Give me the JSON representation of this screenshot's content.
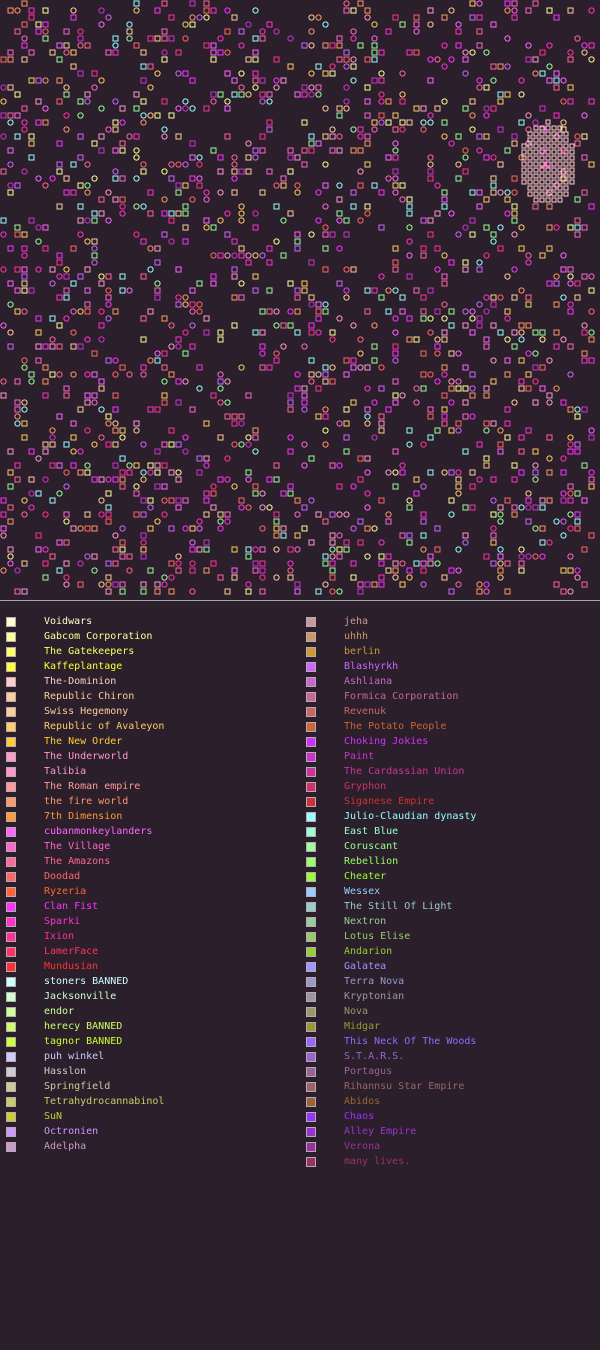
{
  "legend": {
    "left": [
      {
        "name": "Voidwars",
        "color": "#ffffcc"
      },
      {
        "name": "Gabcom Corporation",
        "color": "#ffff99"
      },
      {
        "name": "The Gatekeepers",
        "color": "#ffff66"
      },
      {
        "name": "Kaffeplantage",
        "color": "#ffff33"
      },
      {
        "name": "The-Dominion",
        "color": "#ffcccc"
      },
      {
        "name": "Republic Chiron",
        "color": "#ffcc99"
      },
      {
        "name": "Swiss Hegemony",
        "color": "#ffcc99"
      },
      {
        "name": "Republic of Avaleyon",
        "color": "#ffcc66"
      },
      {
        "name": "The New Order",
        "color": "#ffcc33"
      },
      {
        "name": "The Underworld",
        "color": "#ff99cc"
      },
      {
        "name": "Talibia",
        "color": "#ff99cc"
      },
      {
        "name": "The Roman empire",
        "color": "#ff9999"
      },
      {
        "name": "the fire world",
        "color": "#ff9966"
      },
      {
        "name": "7th Dimension",
        "color": "#ff9933"
      },
      {
        "name": "cubanmonkeylanders",
        "color": "#ff66ff"
      },
      {
        "name": "The Village",
        "color": "#ff66cc"
      },
      {
        "name": "The Amazons",
        "color": "#ff6699"
      },
      {
        "name": "Doodad",
        "color": "#ff6666"
      },
      {
        "name": "Ryzeria",
        "color": "#ff6633"
      },
      {
        "name": "Clan Fist",
        "color": "#ff33ff"
      },
      {
        "name": "Sparki",
        "color": "#ff33cc"
      },
      {
        "name": "Ixion",
        "color": "#ff3399"
      },
      {
        "name": "LamerFace",
        "color": "#ff3366"
      },
      {
        "name": "Mundusian",
        "color": "#ff3333"
      },
      {
        "name": "stoners BANNED",
        "color": "#ccffff"
      },
      {
        "name": "Jacksonville",
        "color": "#ccffcc"
      },
      {
        "name": "endor",
        "color": "#ccff99"
      },
      {
        "name": "herecy BANNED",
        "color": "#ccff66"
      },
      {
        "name": "tagnor BANNED",
        "color": "#ccff33"
      },
      {
        "name": "puh winkel",
        "color": "#ccccff"
      },
      {
        "name": "Hasslon",
        "color": "#cccccc"
      },
      {
        "name": "Springfield",
        "color": "#cccc99"
      },
      {
        "name": "Tetrahydrocannabinol",
        "color": "#cccc66"
      },
      {
        "name": "SuN",
        "color": "#cccc33"
      },
      {
        "name": "Octronien",
        "color": "#cc99ff"
      },
      {
        "name": "Adelpha",
        "color": "#cc99cc"
      }
    ],
    "right": [
      {
        "name": "jeha",
        "color": "#cc9999"
      },
      {
        "name": "uhhh",
        "color": "#cc9966"
      },
      {
        "name": "berlin",
        "color": "#cc9933"
      },
      {
        "name": "Blashyrkh",
        "color": "#cc66ff"
      },
      {
        "name": "Ashliana",
        "color": "#cc66cc"
      },
      {
        "name": "Formica Corporation",
        "color": "#cc6699"
      },
      {
        "name": "Revenuk",
        "color": "#cc6666"
      },
      {
        "name": "The Potato People",
        "color": "#cc6633"
      },
      {
        "name": "Choking Jokies",
        "color": "#cc33ff"
      },
      {
        "name": "Paint",
        "color": "#cc33cc"
      },
      {
        "name": "The Cardassian Union",
        "color": "#cc3399"
      },
      {
        "name": "Gryphon",
        "color": "#cc3366"
      },
      {
        "name": "Siganese Empire",
        "color": "#cc3333"
      },
      {
        "name": "Julio-Claudian dynasty",
        "color": "#99ffff"
      },
      {
        "name": "East Blue",
        "color": "#99ffcc"
      },
      {
        "name": "Coruscant",
        "color": "#99ff99"
      },
      {
        "name": "Rebellion",
        "color": "#99ff66"
      },
      {
        "name": "Cheater",
        "color": "#99ff33"
      },
      {
        "name": "Wessex",
        "color": "#99ccff"
      },
      {
        "name": "The Still Of Light",
        "color": "#99cccc"
      },
      {
        "name": "Nextron",
        "color": "#99cc99"
      },
      {
        "name": "Lotus Elise",
        "color": "#99cc66"
      },
      {
        "name": "Andarion",
        "color": "#99cc33"
      },
      {
        "name": "Galatea",
        "color": "#9999ff"
      },
      {
        "name": "Terra Nova",
        "color": "#9999cc"
      },
      {
        "name": "Kryptonian",
        "color": "#999999"
      },
      {
        "name": "Nova",
        "color": "#999966"
      },
      {
        "name": "Midgar",
        "color": "#999933"
      },
      {
        "name": "This Neck Of The Woods",
        "color": "#9966ff"
      },
      {
        "name": "S.T.A.R.S.",
        "color": "#9966cc"
      },
      {
        "name": "Portagus",
        "color": "#996699"
      },
      {
        "name": "Rihannsu Star Empire",
        "color": "#996666"
      },
      {
        "name": "Abidos",
        "color": "#996633"
      },
      {
        "name": "Chaos",
        "color": "#9933ff"
      },
      {
        "name": "Alley Empire",
        "color": "#9933cc"
      },
      {
        "name": "Verona",
        "color": "#993399"
      },
      {
        "name": "many lives.",
        "color": "#993366"
      }
    ]
  }
}
